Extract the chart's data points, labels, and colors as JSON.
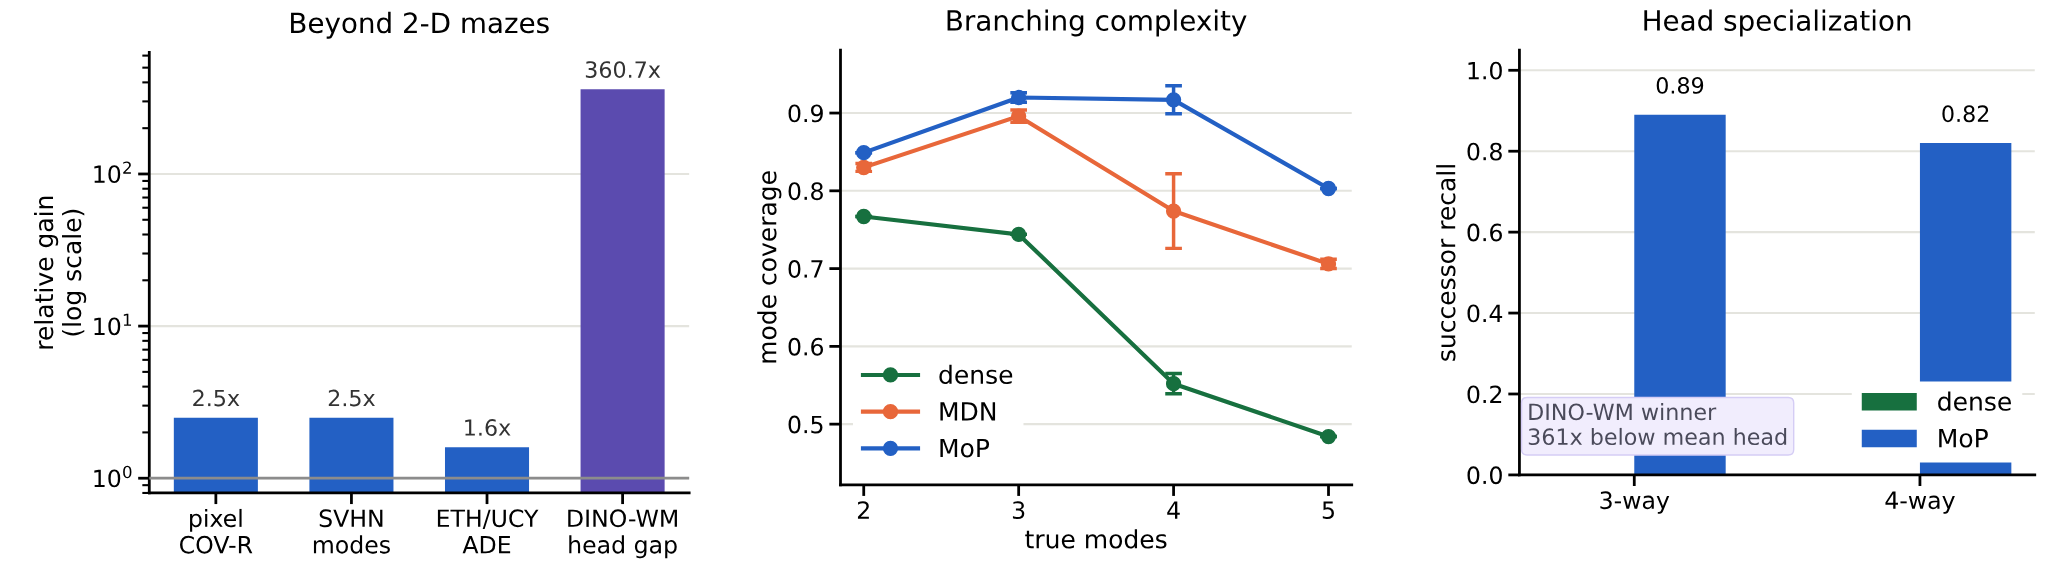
{
  "chart_data": [
    {
      "type": "bar",
      "title": "Beyond 2-D mazes",
      "ylabel": "relative gain\n(log scale)",
      "categories": [
        "pixel\nCOV-R",
        "SVHN\nmodes",
        "ETH/UCY\nADE",
        "DINO-WM\nhead gap"
      ],
      "values": [
        2.5,
        2.5,
        1.6,
        360.7
      ],
      "colors": [
        "#2360c4",
        "#2360c4",
        "#2360c4",
        "#5b4baf"
      ],
      "value_labels": [
        "2.5x",
        "2.5x",
        "1.6x",
        "360.7x"
      ],
      "log": true,
      "ylim": [
        0.8,
        630
      ],
      "yticks": [
        {
          "value": 1,
          "label": "10$^{0}$"
        },
        {
          "value": 10,
          "label": "10$^{1}$"
        },
        {
          "value": 100,
          "label": "10$^{2}$"
        }
      ],
      "ref_lines": [
        {
          "axis": "y",
          "value": 1,
          "color": "#8c8c8c"
        }
      ],
      "grid": "y",
      "legend": false
    },
    {
      "type": "line",
      "title": "Branching complexity",
      "xlabel": "true modes",
      "ylabel": "mode coverage",
      "x": [
        2,
        3,
        4,
        5
      ],
      "xlim": [
        1.85,
        5.15
      ],
      "xticks": [
        2,
        3,
        4,
        5
      ],
      "ylim": [
        0.422,
        0.981
      ],
      "yticks": [
        0.5,
        0.6,
        0.7,
        0.8,
        0.9
      ],
      "series": [
        {
          "name": "dense",
          "color": "#17703f",
          "values": [
            0.767,
            0.744,
            0.552,
            0.484
          ],
          "errors": [
            null,
            null,
            0.013,
            null
          ]
        },
        {
          "name": "MDN",
          "color": "#e8673a",
          "values": [
            0.83,
            0.896,
            0.774,
            0.706
          ],
          "errors": [
            0.005,
            0.008,
            0.048,
            0.006
          ]
        },
        {
          "name": "MoP",
          "color": "#2360c4",
          "values": [
            0.849,
            0.92,
            0.917,
            0.803
          ],
          "errors": [
            null,
            0.006,
            0.018,
            null
          ]
        }
      ],
      "marker": "circle",
      "line_style": "solid",
      "grid": "y",
      "legend": "bottom left"
    },
    {
      "type": "bar",
      "title": "Head specialization",
      "ylabel": "successor recall",
      "categories": [
        "3-way",
        "4-way"
      ],
      "series": [
        {
          "name": "dense",
          "color": "#17703f",
          "values": [
            0,
            0
          ]
        },
        {
          "name": "MoP",
          "color": "#2360c4",
          "values": [
            0.89,
            0.82
          ],
          "value_labels": [
            "0.89",
            "0.82"
          ]
        }
      ],
      "ylim": [
        0,
        1.05
      ],
      "yticks": [
        {
          "value": 0,
          "label": "0.0"
        },
        {
          "value": 0.2,
          "label": "0.2"
        },
        {
          "value": 0.4,
          "label": "0.4"
        },
        {
          "value": 0.6,
          "label": "0.6"
        },
        {
          "value": 0.8,
          "label": "0.8"
        },
        {
          "value": 1.0,
          "label": "1.0"
        }
      ],
      "annotations": [
        "DINO-WM winner\n361x below mean head"
      ],
      "grid": "y",
      "legend": "bottom right"
    }
  ]
}
